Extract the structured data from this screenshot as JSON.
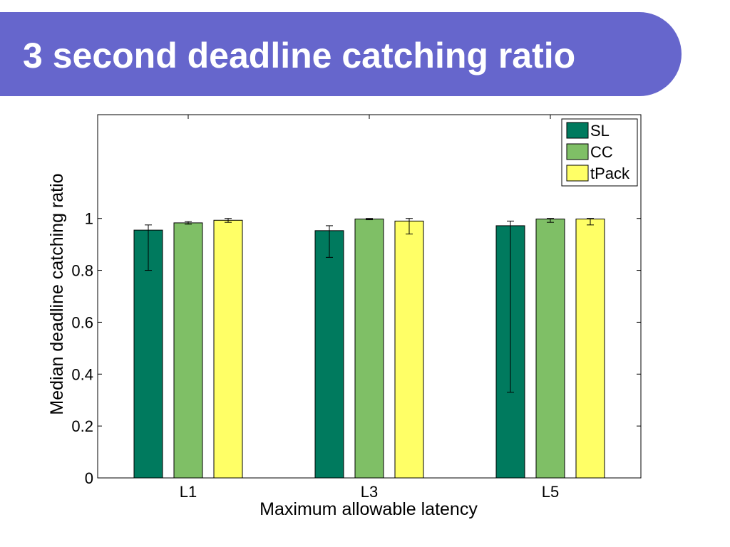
{
  "slide": {
    "title": "3 second deadline catching ratio",
    "banner_color": "#6666cc"
  },
  "chart_data": {
    "type": "bar",
    "title": "",
    "xlabel": "Maximum allowable latency",
    "ylabel": "Median deadline catching ratio",
    "categories": [
      "L1",
      "L3",
      "L5"
    ],
    "ylim": [
      0,
      1.4
    ],
    "yticks": [
      0,
      0.2,
      0.4,
      0.6,
      0.8,
      1
    ],
    "ytick_labels": [
      "0",
      "0.2",
      "0.4",
      "0.6",
      "0.8",
      "1"
    ],
    "grid": false,
    "legend_position": "top-right",
    "series": [
      {
        "name": "SL",
        "color": "#007a5e",
        "values": [
          0.955,
          0.953,
          0.972
        ],
        "error_low": [
          0.8,
          0.85,
          0.33
        ],
        "error_high": [
          0.975,
          0.972,
          0.99
        ]
      },
      {
        "name": "CC",
        "color": "#7fbf66",
        "values": [
          0.983,
          0.998,
          0.998
        ],
        "error_low": [
          0.978,
          0.995,
          0.985
        ],
        "error_high": [
          0.988,
          1.0,
          1.0
        ]
      },
      {
        "name": "tPack",
        "color": "#ffff66",
        "values": [
          0.993,
          0.99,
          0.998
        ],
        "error_low": [
          0.985,
          0.94,
          0.975
        ],
        "error_high": [
          1.0,
          1.0,
          1.0
        ]
      }
    ]
  }
}
